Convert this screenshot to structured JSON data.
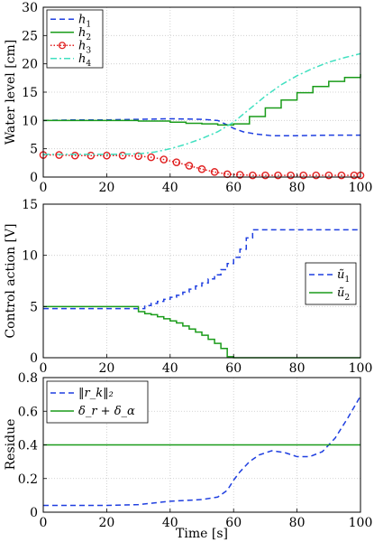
{
  "figure": {
    "xlabel": "Time [s]"
  },
  "chart_data": [
    {
      "type": "line",
      "ylabel": "Water level [cm]",
      "xlim": [
        0,
        100
      ],
      "ylim": [
        0,
        30
      ],
      "xticks": [
        0,
        20,
        40,
        60,
        80,
        100
      ],
      "yticks": [
        0,
        5,
        10,
        15,
        20,
        25,
        30
      ],
      "grid": true,
      "legend_position": "top-left",
      "series": [
        {
          "name": "h",
          "subscript": "1",
          "color": "#1f3fe0",
          "style": "dashed",
          "x": [
            0,
            10,
            20,
            30,
            40,
            50,
            55,
            58,
            60,
            63,
            67,
            72,
            80,
            90,
            100
          ],
          "y": [
            10.0,
            10.1,
            10.1,
            10.2,
            10.3,
            10.2,
            10.0,
            9.2,
            8.6,
            8.0,
            7.6,
            7.3,
            7.3,
            7.4,
            7.4
          ]
        },
        {
          "name": "h",
          "subscript": "2",
          "color": "#1a9c1a",
          "style": "stairs",
          "x": [
            0,
            10,
            20,
            30,
            40,
            45,
            50,
            55,
            58,
            60,
            65,
            70,
            75,
            80,
            85,
            90,
            95,
            100
          ],
          "y": [
            10.0,
            10.0,
            10.0,
            9.9,
            9.7,
            9.5,
            9.4,
            9.2,
            9.2,
            9.4,
            10.7,
            12.2,
            13.6,
            14.9,
            16.0,
            16.9,
            17.6,
            18.2
          ]
        },
        {
          "name": "h",
          "subscript": "3",
          "color": "#e02020",
          "style": "dotted-circles",
          "x": [
            0,
            5,
            10,
            15,
            20,
            25,
            30,
            34,
            38,
            42,
            46,
            50,
            54,
            58,
            62,
            66,
            70,
            74,
            78,
            82,
            86,
            90,
            94,
            98,
            100
          ],
          "y": [
            3.9,
            3.9,
            3.8,
            3.8,
            3.8,
            3.8,
            3.7,
            3.5,
            3.1,
            2.6,
            2.0,
            1.4,
            0.9,
            0.5,
            0.4,
            0.3,
            0.3,
            0.3,
            0.3,
            0.3,
            0.3,
            0.3,
            0.3,
            0.3,
            0.3
          ]
        },
        {
          "name": "h",
          "subscript": "4",
          "color": "#40e0c0",
          "style": "dash-dot",
          "x": [
            0,
            10,
            20,
            30,
            35,
            40,
            45,
            50,
            55,
            60,
            65,
            70,
            75,
            80,
            85,
            90,
            95,
            100
          ],
          "y": [
            4.0,
            4.0,
            4.0,
            4.1,
            4.4,
            5.0,
            5.8,
            6.8,
            8.0,
            9.7,
            12.0,
            14.3,
            16.3,
            17.9,
            19.2,
            20.3,
            21.1,
            21.8
          ]
        }
      ]
    },
    {
      "type": "line",
      "ylabel": "Control action [V]",
      "xlim": [
        0,
        100
      ],
      "ylim": [
        0,
        15
      ],
      "xticks": [
        0,
        20,
        40,
        60,
        80,
        100
      ],
      "yticks": [
        0,
        5,
        10,
        15
      ],
      "grid": true,
      "legend_position": "right",
      "series": [
        {
          "name": "ũ",
          "subscript": "1",
          "color": "#1f3fe0",
          "style": "dashed-stairs",
          "x": [
            0,
            30,
            32,
            34,
            36,
            38,
            40,
            42,
            44,
            46,
            48,
            50,
            52,
            54,
            56,
            58,
            60,
            62,
            64,
            66,
            100
          ],
          "y": [
            4.8,
            4.8,
            5.1,
            5.3,
            5.5,
            5.7,
            5.9,
            6.1,
            6.4,
            6.7,
            7.0,
            7.3,
            7.7,
            8.1,
            8.6,
            9.2,
            9.8,
            10.6,
            11.7,
            12.5,
            12.5
          ]
        },
        {
          "name": "ũ",
          "subscript": "2",
          "color": "#1a9c1a",
          "style": "stairs",
          "x": [
            0,
            30,
            32,
            34,
            36,
            38,
            40,
            42,
            44,
            46,
            48,
            50,
            52,
            54,
            56,
            58,
            60,
            100
          ],
          "y": [
            5.0,
            4.5,
            4.3,
            4.2,
            4.0,
            3.8,
            3.6,
            3.4,
            3.1,
            2.8,
            2.5,
            2.2,
            1.8,
            1.4,
            0.9,
            0.1,
            0.0,
            0.0
          ]
        }
      ]
    },
    {
      "type": "line",
      "ylabel": "Residue",
      "xlabel": "Time [s]",
      "xlim": [
        0,
        100
      ],
      "ylim": [
        0,
        0.8
      ],
      "xticks": [
        0,
        20,
        40,
        60,
        80,
        100
      ],
      "yticks": [
        0,
        0.2,
        0.4,
        0.6,
        0.8
      ],
      "grid": true,
      "legend_position": "top-left",
      "series": [
        {
          "name": "‖r_k‖₂",
          "color": "#1f3fe0",
          "style": "dashed",
          "x": [
            0,
            10,
            20,
            30,
            35,
            40,
            45,
            50,
            55,
            58,
            60,
            62,
            65,
            68,
            72,
            76,
            80,
            84,
            88,
            92,
            96,
            100
          ],
          "y": [
            0.04,
            0.04,
            0.04,
            0.045,
            0.055,
            0.065,
            0.07,
            0.075,
            0.09,
            0.13,
            0.19,
            0.24,
            0.3,
            0.34,
            0.365,
            0.355,
            0.33,
            0.33,
            0.36,
            0.44,
            0.56,
            0.69
          ]
        },
        {
          "name": "δ_r + δ_α",
          "color": "#1a9c1a",
          "style": "solid",
          "x": [
            0,
            100
          ],
          "y": [
            0.4,
            0.4
          ]
        }
      ]
    }
  ]
}
